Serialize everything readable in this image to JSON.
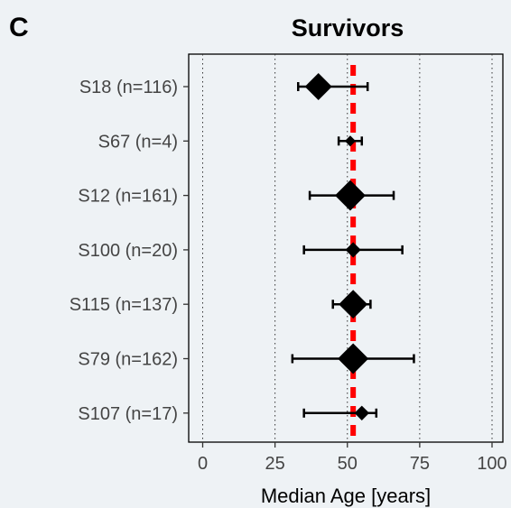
{
  "panel_label": "C",
  "chart_data": {
    "type": "forest",
    "title": "Survivors",
    "xlabel": "Median Age [years]",
    "xlim": [
      -5,
      102
    ],
    "xticks": [
      0,
      25,
      50,
      75,
      100
    ],
    "vertical_gridlines": [
      0,
      25,
      50,
      75,
      100
    ],
    "reference_line": {
      "x": 52,
      "color": "#ff0000",
      "style": "dashed"
    },
    "categories": [
      "S18 (n=116)",
      "S67 (n=4)",
      "S12 (n=161)",
      "S100 (n=20)",
      "S115 (n=137)",
      "S79 (n=162)",
      "S107 (n=17)"
    ],
    "points": [
      {
        "label": "S18 (n=116)",
        "median": 40,
        "lower": 33,
        "upper": 57,
        "n": 116
      },
      {
        "label": "S67 (n=4)",
        "median": 51,
        "lower": 47,
        "upper": 55,
        "n": 4
      },
      {
        "label": "S12 (n=161)",
        "median": 51,
        "lower": 37,
        "upper": 66,
        "n": 161
      },
      {
        "label": "S100 (n=20)",
        "median": 52,
        "lower": 35,
        "upper": 69,
        "n": 20
      },
      {
        "label": "S115 (n=137)",
        "median": 52,
        "lower": 45,
        "upper": 58,
        "n": 137
      },
      {
        "label": "S79 (n=162)",
        "median": 52,
        "lower": 31,
        "upper": 73,
        "n": 162
      },
      {
        "label": "S107 (n=17)",
        "median": 55,
        "lower": 35,
        "upper": 60,
        "n": 17
      }
    ],
    "marker_color": "#000000"
  }
}
